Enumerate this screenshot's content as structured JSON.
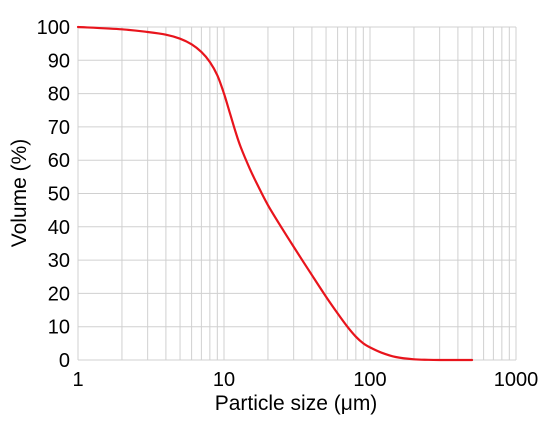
{
  "chart_data": {
    "type": "line",
    "title": "",
    "xlabel": "Particle size (μm)",
    "ylabel": "Volume (%)",
    "x_scale": "log",
    "xlim": [
      1,
      1000
    ],
    "ylim": [
      0,
      100
    ],
    "grid": true,
    "x_ticks": [
      1,
      10,
      100,
      1000
    ],
    "x_tick_labels": [
      "1",
      "10",
      "100",
      "1000"
    ],
    "y_ticks": [
      0,
      10,
      20,
      30,
      40,
      50,
      60,
      70,
      80,
      90,
      100
    ],
    "y_tick_labels": [
      "0",
      "10",
      "20",
      "30",
      "40",
      "50",
      "60",
      "70",
      "80",
      "90",
      "100"
    ],
    "series": [
      {
        "color": "#e8141c",
        "x": [
          1,
          2,
          3,
          4,
          5,
          6,
          7,
          8,
          9,
          10,
          11,
          12,
          13,
          15,
          17,
          20,
          25,
          30,
          40,
          50,
          60,
          70,
          80,
          90,
          100,
          120,
          150,
          200,
          250,
          300,
          400,
          500
        ],
        "y": [
          100,
          99.3,
          98.5,
          97.7,
          96.5,
          94.8,
          92.5,
          89.5,
          85.5,
          80,
          74,
          68.5,
          64,
          57.5,
          52.5,
          46.5,
          39.5,
          34,
          25.5,
          19,
          14,
          10,
          7,
          5,
          3.8,
          2.2,
          0.9,
          0.2,
          0.05,
          0,
          0,
          0
        ]
      }
    ]
  }
}
